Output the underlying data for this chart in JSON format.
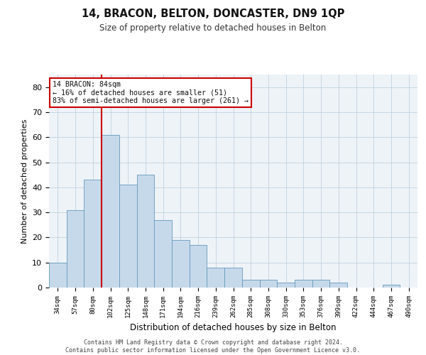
{
  "title": "14, BRACON, BELTON, DONCASTER, DN9 1QP",
  "subtitle": "Size of property relative to detached houses in Belton",
  "xlabel": "Distribution of detached houses by size in Belton",
  "ylabel": "Number of detached properties",
  "bar_color": "#c6d9ea",
  "bar_edge_color": "#6699bb",
  "grid_color": "#b8ccd8",
  "background_color": "#eef3f8",
  "red_line_color": "#cc0000",
  "annotation_box_color": "#cc0000",
  "categories": [
    "34sqm",
    "57sqm",
    "80sqm",
    "102sqm",
    "125sqm",
    "148sqm",
    "171sqm",
    "194sqm",
    "216sqm",
    "239sqm",
    "262sqm",
    "285sqm",
    "308sqm",
    "330sqm",
    "353sqm",
    "376sqm",
    "399sqm",
    "422sqm",
    "444sqm",
    "467sqm",
    "490sqm"
  ],
  "values": [
    10,
    31,
    43,
    61,
    41,
    45,
    27,
    19,
    17,
    8,
    8,
    3,
    3,
    2,
    3,
    3,
    2,
    0,
    0,
    1,
    0
  ],
  "red_line_x": 2.5,
  "annotation_text": "14 BRACON: 84sqm\n← 16% of detached houses are smaller (51)\n83% of semi-detached houses are larger (261) →",
  "ylim": [
    0,
    85
  ],
  "yticks": [
    0,
    10,
    20,
    30,
    40,
    50,
    60,
    70,
    80
  ],
  "footer_line1": "Contains HM Land Registry data © Crown copyright and database right 2024.",
  "footer_line2": "Contains public sector information licensed under the Open Government Licence v3.0."
}
